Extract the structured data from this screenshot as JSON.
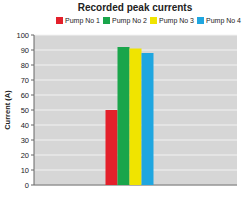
{
  "chart_data": {
    "type": "bar",
    "title": "Recorded peak currents",
    "categories": [
      null
    ],
    "series": [
      {
        "name": "Pump No 1",
        "color": "#e3202b",
        "values": [
          50
        ]
      },
      {
        "name": "Pump No 2",
        "color": "#19a54b",
        "values": [
          92
        ]
      },
      {
        "name": "Pump No 3",
        "color": "#f0e400",
        "values": [
          91
        ]
      },
      {
        "name": "Pump No 4",
        "color": "#1fa6e0",
        "values": [
          88
        ]
      }
    ],
    "y_label": "Current (A)",
    "ylim": [
      0,
      100
    ],
    "yticks": [
      0,
      10,
      20,
      30,
      40,
      50,
      60,
      70,
      80,
      90,
      100
    ],
    "grid": true,
    "legend": "top"
  }
}
